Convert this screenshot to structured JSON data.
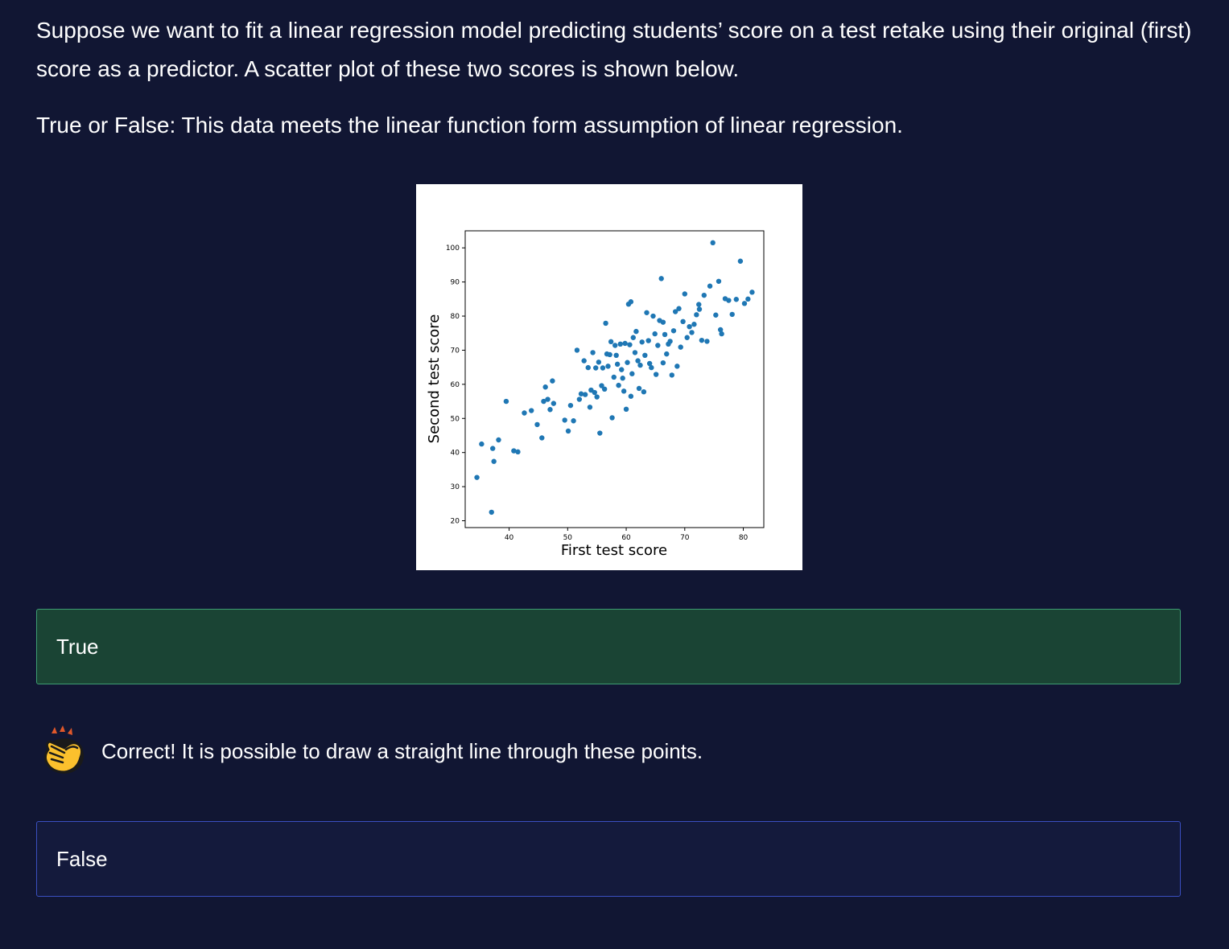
{
  "question": {
    "text": "Suppose we want to fit a linear regression model predicting students’ score on a test retake using their original (first) score as a predictor. A scatter plot of these two scores is shown below.",
    "prompt": "True or False: This data meets the linear function form assumption of linear regression."
  },
  "options": [
    {
      "label": "True",
      "state": "selected-correct"
    },
    {
      "label": "False",
      "state": "unselected"
    }
  ],
  "feedback": {
    "icon": "clapping-hands-icon",
    "text": "Correct! It is possible to draw a straight line through these points."
  },
  "colors": {
    "background": "#111633",
    "correct_bg": "#1a4434",
    "correct_border": "#3e9d72",
    "option_bg": "#141a3c",
    "option_border": "#3a4fc0",
    "point": "#1f77b4"
  },
  "chart_data": {
    "type": "scatter",
    "title": "",
    "xlabel": "First test score",
    "ylabel": "Second test score",
    "xlim": [
      32.5,
      83.5
    ],
    "ylim": [
      18,
      105
    ],
    "xticks": [
      40,
      50,
      60,
      70,
      80
    ],
    "yticks": [
      20,
      30,
      40,
      50,
      60,
      70,
      80,
      90,
      100
    ],
    "grid": false,
    "x": [
      34.5,
      35.3,
      37,
      37.2,
      37.4,
      38.2,
      39.5,
      40.8,
      41.5,
      42.6,
      43.8,
      44.8,
      45.6,
      45.9,
      46.2,
      46.6,
      47,
      47.4,
      47.6,
      49.5,
      50.1,
      50.5,
      51,
      51.6,
      52,
      52.3,
      52.8,
      53,
      53.5,
      53.8,
      54,
      54.3,
      54.6,
      54.8,
      55,
      55.3,
      55.5,
      55.8,
      56,
      56.3,
      56.5,
      56.7,
      56.9,
      57.2,
      57.4,
      57.6,
      57.9,
      58.1,
      58.3,
      58.5,
      58.7,
      59,
      59.2,
      59.4,
      59.6,
      59.8,
      60,
      60.2,
      60.4,
      60.6,
      60.8,
      61,
      61.2,
      61.5,
      61.7,
      62,
      62.2,
      62.4,
      62.7,
      63,
      63.2,
      63.5,
      63.8,
      64,
      64.3,
      64.6,
      64.9,
      65.1,
      65.4,
      65.7,
      66,
      66.3,
      66.6,
      66.9,
      67.2,
      67.5,
      67.8,
      68.1,
      68.4,
      68.7,
      69,
      69.3,
      69.7,
      70,
      70.4,
      70.8,
      71.2,
      71.6,
      72,
      72.4,
      72.9,
      73.3,
      73.8,
      74.3,
      74.8,
      75.3,
      75.8,
      76.3,
      76.9,
      77.5,
      78.1,
      78.8,
      79.5,
      80.2,
      80.8,
      81.5,
      60.8,
      66.3,
      72.5,
      76.1
    ],
    "y": [
      32.7,
      42.5,
      22.5,
      41.2,
      37.4,
      43.7,
      55,
      40.5,
      40.2,
      51.6,
      52.3,
      48.2,
      44.3,
      55,
      59.2,
      55.6,
      52.6,
      61,
      54.4,
      49.5,
      46.3,
      53.8,
      49.3,
      70,
      55.6,
      57.2,
      66.9,
      57,
      64.9,
      53.3,
      58.3,
      69.3,
      57.6,
      64.8,
      56.3,
      66.5,
      45.7,
      59.6,
      64.8,
      58.6,
      77.9,
      68.9,
      65.3,
      68.7,
      72.5,
      50.2,
      62.1,
      71.4,
      68.5,
      65.9,
      59.7,
      71.8,
      64.3,
      61.8,
      58,
      72,
      52.7,
      66.4,
      83.5,
      71.6,
      56.5,
      63.1,
      73.7,
      69.3,
      75.5,
      66.9,
      58.8,
      65.6,
      72.4,
      57.8,
      68.5,
      81,
      72.8,
      66.1,
      64.9,
      80,
      74.8,
      62.9,
      71.4,
      78.7,
      91,
      66.3,
      74.6,
      68.9,
      71.8,
      72.6,
      62.7,
      75.7,
      81.3,
      65.3,
      82.2,
      70.9,
      78.4,
      86.5,
      73.7,
      76.9,
      75.2,
      77.6,
      80.4,
      83.4,
      72.9,
      86.1,
      72.6,
      88.8,
      101.5,
      80.3,
      90.2,
      74.8,
      85.1,
      84.6,
      80.5,
      84.9,
      96.1,
      83.7,
      85,
      87,
      84.2,
      78.2,
      82,
      76
    ]
  }
}
